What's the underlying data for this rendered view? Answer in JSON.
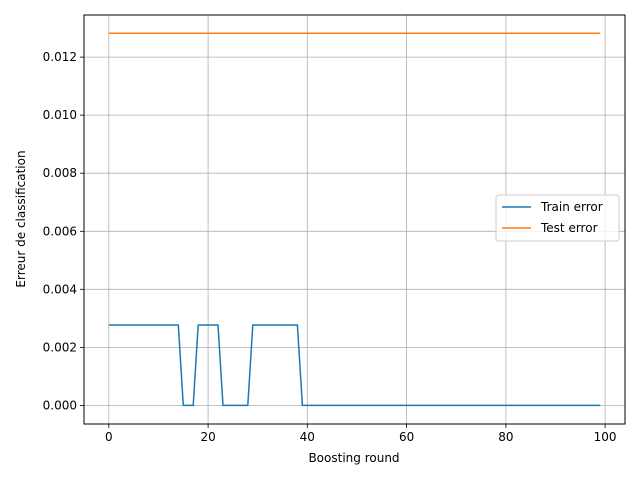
{
  "chart_data": {
    "type": "line",
    "title": "",
    "xlabel": "Boosting round",
    "ylabel": "Erreur de classification",
    "xlim": [
      -5,
      104
    ],
    "ylim": [
      -0.00064,
      0.01345
    ],
    "xticks": [
      0,
      20,
      40,
      60,
      80,
      100
    ],
    "xtick_labels": [
      "0",
      "20",
      "40",
      "60",
      "80",
      "100"
    ],
    "yticks": [
      0.0,
      0.002,
      0.004,
      0.006,
      0.008,
      0.01,
      0.012
    ],
    "ytick_labels": [
      "0.000",
      "0.002",
      "0.004",
      "0.006",
      "0.008",
      "0.010",
      "0.012"
    ],
    "grid": true,
    "legend_position": "center-right",
    "series": [
      {
        "name": "Train error",
        "color": "#1f77b4",
        "points": [
          [
            0,
            0.00277
          ],
          [
            14,
            0.00277
          ],
          [
            15,
            0.0
          ],
          [
            17,
            0.0
          ],
          [
            18,
            0.00277
          ],
          [
            22,
            0.00277
          ],
          [
            23,
            0.0
          ],
          [
            28,
            0.0
          ],
          [
            29,
            0.00277
          ],
          [
            38,
            0.00277
          ],
          [
            39,
            0.0
          ],
          [
            99,
            0.0
          ]
        ]
      },
      {
        "name": "Test error",
        "color": "#ff7f0e",
        "points": [
          [
            0,
            0.01282
          ],
          [
            99,
            0.01282
          ]
        ]
      }
    ]
  }
}
